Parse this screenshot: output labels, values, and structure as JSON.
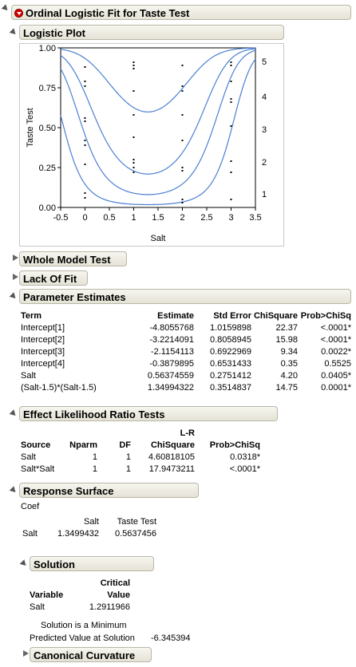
{
  "title": "Ordinal Logistic Fit for Taste Test",
  "logistic_plot": {
    "header": "Logistic Plot",
    "chart_data": {
      "type": "line",
      "xlabel": "Salt",
      "ylabel": "Taste Test",
      "xlim": [
        -0.5,
        3.5
      ],
      "ylim": [
        0,
        1
      ],
      "x_ticks": [
        "-0.5",
        "0",
        "0.5",
        "1",
        "1.5",
        "2",
        "2.5",
        "3",
        "3.5"
      ],
      "y_ticks": [
        "0.00",
        "0.25",
        "0.50",
        "0.75",
        "1.00"
      ],
      "right_labels": [
        "1",
        "2",
        "3",
        "4",
        "5"
      ],
      "right_label_y": [
        0.085,
        0.285,
        0.49,
        0.695,
        0.915
      ],
      "curve_params": {
        "intercepts": [
          -4.8055768,
          -3.2214091,
          -2.1154113,
          -0.3879895
        ],
        "salt": 0.56374559,
        "salt_sq": 1.34994322,
        "center": 1.5
      },
      "points": [
        {
          "x": 0,
          "y": 0.09
        },
        {
          "x": 0,
          "y": 0.06
        },
        {
          "x": 0,
          "y": 0.27
        },
        {
          "x": 0,
          "y": 0.39
        },
        {
          "x": 0,
          "y": 0.42
        },
        {
          "x": 0,
          "y": 0.54
        },
        {
          "x": 0,
          "y": 0.56
        },
        {
          "x": 0,
          "y": 0.76
        },
        {
          "x": 0,
          "y": 0.79
        },
        {
          "x": 0,
          "y": 0.88
        },
        {
          "x": 1,
          "y": 0.22
        },
        {
          "x": 1,
          "y": 0.25
        },
        {
          "x": 1,
          "y": 0.28
        },
        {
          "x": 1,
          "y": 0.3
        },
        {
          "x": 1,
          "y": 0.44
        },
        {
          "x": 1,
          "y": 0.58
        },
        {
          "x": 1,
          "y": 0.73
        },
        {
          "x": 1,
          "y": 0.87
        },
        {
          "x": 1,
          "y": 0.89
        },
        {
          "x": 1,
          "y": 0.91
        },
        {
          "x": 2,
          "y": 0.03
        },
        {
          "x": 2,
          "y": 0.05
        },
        {
          "x": 2,
          "y": 0.23
        },
        {
          "x": 2,
          "y": 0.25
        },
        {
          "x": 2,
          "y": 0.42
        },
        {
          "x": 2,
          "y": 0.58
        },
        {
          "x": 2,
          "y": 0.73
        },
        {
          "x": 2,
          "y": 0.76
        },
        {
          "x": 2,
          "y": 0.89
        },
        {
          "x": 3,
          "y": 0.05
        },
        {
          "x": 3,
          "y": 0.22
        },
        {
          "x": 3,
          "y": 0.29
        },
        {
          "x": 3,
          "y": 0.51
        },
        {
          "x": 3,
          "y": 0.66
        },
        {
          "x": 3,
          "y": 0.68
        },
        {
          "x": 3,
          "y": 0.79
        },
        {
          "x": 3,
          "y": 0.89
        },
        {
          "x": 3,
          "y": 0.91
        }
      ],
      "colors": {
        "curve": "#4a7fd4",
        "point": "#000000"
      }
    }
  },
  "whole_model_test": {
    "header": "Whole Model Test"
  },
  "lack_of_fit": {
    "header": "Lack Of Fit"
  },
  "parameter_estimates": {
    "header": "Parameter Estimates",
    "columns": [
      "Term",
      "Estimate",
      "Std Error",
      "ChiSquare",
      "Prob>ChiSq"
    ],
    "rows": [
      [
        "Intercept[1]",
        "-4.8055768",
        "1.0159898",
        "22.37",
        "<.0001*"
      ],
      [
        "Intercept[2]",
        "-3.2214091",
        "0.8058945",
        "15.98",
        "<.0001*"
      ],
      [
        "Intercept[3]",
        "-2.1154113",
        "0.6922969",
        "9.34",
        "0.0022*"
      ],
      [
        "Intercept[4]",
        "-0.3879895",
        "0.6531433",
        "0.35",
        "0.5525"
      ],
      [
        "Salt",
        "0.56374559",
        "0.2751412",
        "4.20",
        "0.0405*"
      ],
      [
        "(Salt-1.5)*(Salt-1.5)",
        "1.34994322",
        "0.3514837",
        "14.75",
        "0.0001*"
      ]
    ]
  },
  "effect_lr_tests": {
    "header": "Effect Likelihood Ratio Tests",
    "columns_top": [
      "",
      "",
      "",
      "L-R",
      ""
    ],
    "columns": [
      "Source",
      "Nparm",
      "DF",
      "ChiSquare",
      "Prob>ChiSq"
    ],
    "rows": [
      [
        "Salt",
        "1",
        "1",
        "4.60818105",
        "0.0318*"
      ],
      [
        "Salt*Salt",
        "1",
        "1",
        "17.9473211",
        "<.0001*"
      ]
    ]
  },
  "response_surface": {
    "header": "Response Surface",
    "coef_label": "Coef",
    "columns": [
      "",
      "Salt",
      "Taste Test"
    ],
    "rows": [
      [
        "Salt",
        "1.3499432",
        "0.5637456"
      ]
    ]
  },
  "solution": {
    "header": "Solution",
    "columns_top": [
      "",
      "Critical"
    ],
    "columns": [
      "Variable",
      "Value"
    ],
    "rows": [
      [
        "Salt",
        "1.2911966"
      ]
    ],
    "minimum_text": "Solution is a Minimum",
    "predicted_label": "Predicted Value at Solution",
    "predicted_value": "-6.345394"
  },
  "canonical_curvature": {
    "header": "Canonical Curvature"
  }
}
